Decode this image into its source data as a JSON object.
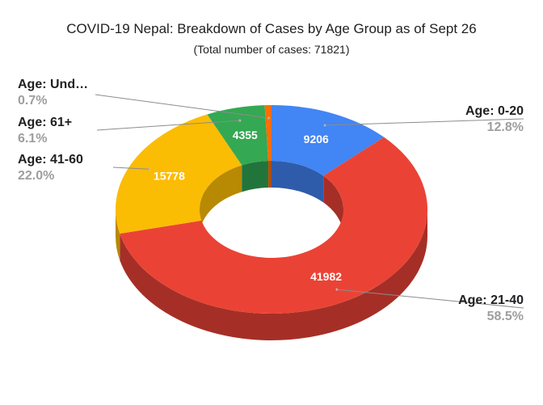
{
  "chart_data": {
    "type": "pie",
    "style": "3d-donut",
    "title": "COVID-19 Nepal: Breakdown of Cases by Age Group as of Sept 26",
    "subtitle": "(Total number of cases: 71821)",
    "slices": [
      {
        "label": "Age: 0-20",
        "value": 9206,
        "value_label": "9206",
        "percent_label": "12.8%",
        "color": "#4285f4",
        "side_color": "#2e5cab"
      },
      {
        "label": "Age: 21-40",
        "value": 41982,
        "value_label": "41982",
        "percent_label": "58.5%",
        "color": "#ea4335",
        "side_color": "#a52f26"
      },
      {
        "label": "Age: 41-60",
        "value": 15778,
        "value_label": "15778",
        "percent_label": "22.0%",
        "color": "#fbbc04",
        "side_color": "#b88903"
      },
      {
        "label": "Age: 61+",
        "value": 4355,
        "value_label": "4355",
        "percent_label": "6.1%",
        "color": "#34a853",
        "side_color": "#22753a"
      },
      {
        "label": "Age: Und…",
        "value": 500,
        "value_label": "",
        "percent_label": "0.7%",
        "color": "#ff6d01",
        "side_color": "#b34c00"
      }
    ],
    "legend": "labels-with-leader-lines"
  }
}
